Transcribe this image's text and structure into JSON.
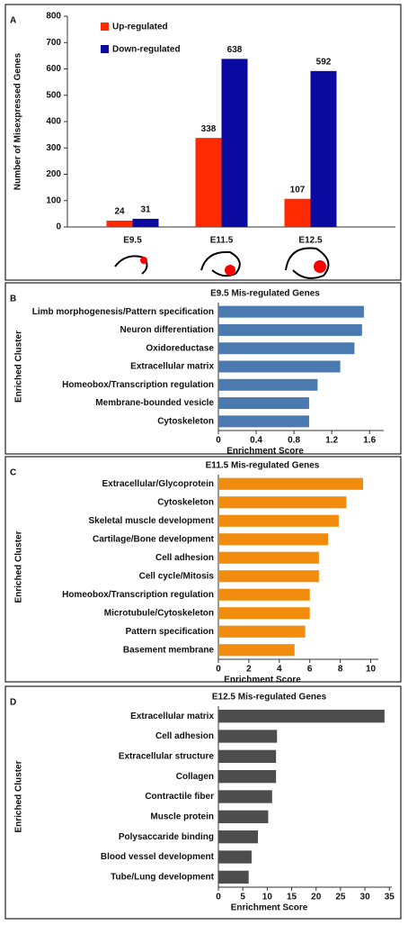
{
  "chart_data": [
    {
      "type": "bar",
      "panel_label": "A",
      "ylabel": "Number of Misexpressed Genes",
      "categories": [
        "E9.5",
        "E11.5",
        "E12.5"
      ],
      "series": [
        {
          "name": "Up-regulated",
          "color": "#ff2a00",
          "values": [
            24,
            338,
            107
          ]
        },
        {
          "name": "Down-regulated",
          "color": "#0a0aa0",
          "values": [
            31,
            638,
            592
          ]
        }
      ],
      "ylim": [
        0,
        800
      ],
      "yticks": [
        0,
        100,
        200,
        300,
        400,
        500,
        600,
        700,
        800
      ],
      "legend": "top-left"
    },
    {
      "type": "hbar",
      "panel_label": "B",
      "title": "E9.5 Mis-regulated Genes",
      "xlabel": "Enrichment Score",
      "ylabel": "Enriched Cluster",
      "color": "#4a7ab0",
      "categories": [
        "Limb morphogenesis/Pattern specification",
        "Neuron differentiation",
        "Oxidoreductase",
        "Extracellular matrix",
        "Homeobox/Transcription regulation",
        "Membrane-bounded vesicle",
        "Cytoskeleton"
      ],
      "values": [
        1.54,
        1.52,
        1.44,
        1.29,
        1.05,
        0.96,
        0.96
      ],
      "xlim": [
        0,
        1.75
      ],
      "xticks": [
        0,
        0.4,
        0.8,
        1.2,
        1.6
      ]
    },
    {
      "type": "hbar",
      "panel_label": "C",
      "title": "E11.5 Mis-regulated Genes",
      "xlabel": "Enrichment Score",
      "ylabel": "Enriched Cluster",
      "color": "#f28c0f",
      "categories": [
        "Extracellular/Glycoprotein",
        "Cytoskeleton",
        "Skeletal muscle development",
        "Cartilage/Bone development",
        "Cell adhesion",
        "Cell cycle/Mitosis",
        "Homeobox/Transcription regulation",
        "Microtubule/Cytoskeleton",
        "Pattern specification",
        "Basement membrane"
      ],
      "values": [
        9.5,
        8.4,
        7.9,
        7.2,
        6.6,
        6.6,
        6.0,
        6.0,
        5.7,
        5.0
      ],
      "xlim": [
        0,
        10.5
      ],
      "xticks": [
        0,
        2,
        4,
        6,
        8,
        10
      ]
    },
    {
      "type": "hbar",
      "panel_label": "D",
      "title": "E12.5 Mis-regulated Genes",
      "xlabel": "Enrichment Score",
      "ylabel": "Enriched Cluster",
      "color": "#4d4d4d",
      "categories": [
        "Extracellular matrix",
        "Cell adhesion",
        "Extracellular structure",
        "Collagen",
        "Contractile fiber",
        "Muscle protein",
        "Polysaccaride binding",
        "Blood vessel development",
        "Tube/Lung development"
      ],
      "values": [
        34,
        12,
        11.8,
        11.8,
        11,
        10.2,
        8.1,
        6.8,
        6.2
      ],
      "xlim": [
        0,
        35.5
      ],
      "xticks": [
        0,
        5,
        10,
        15,
        20,
        25,
        30,
        35
      ]
    }
  ]
}
